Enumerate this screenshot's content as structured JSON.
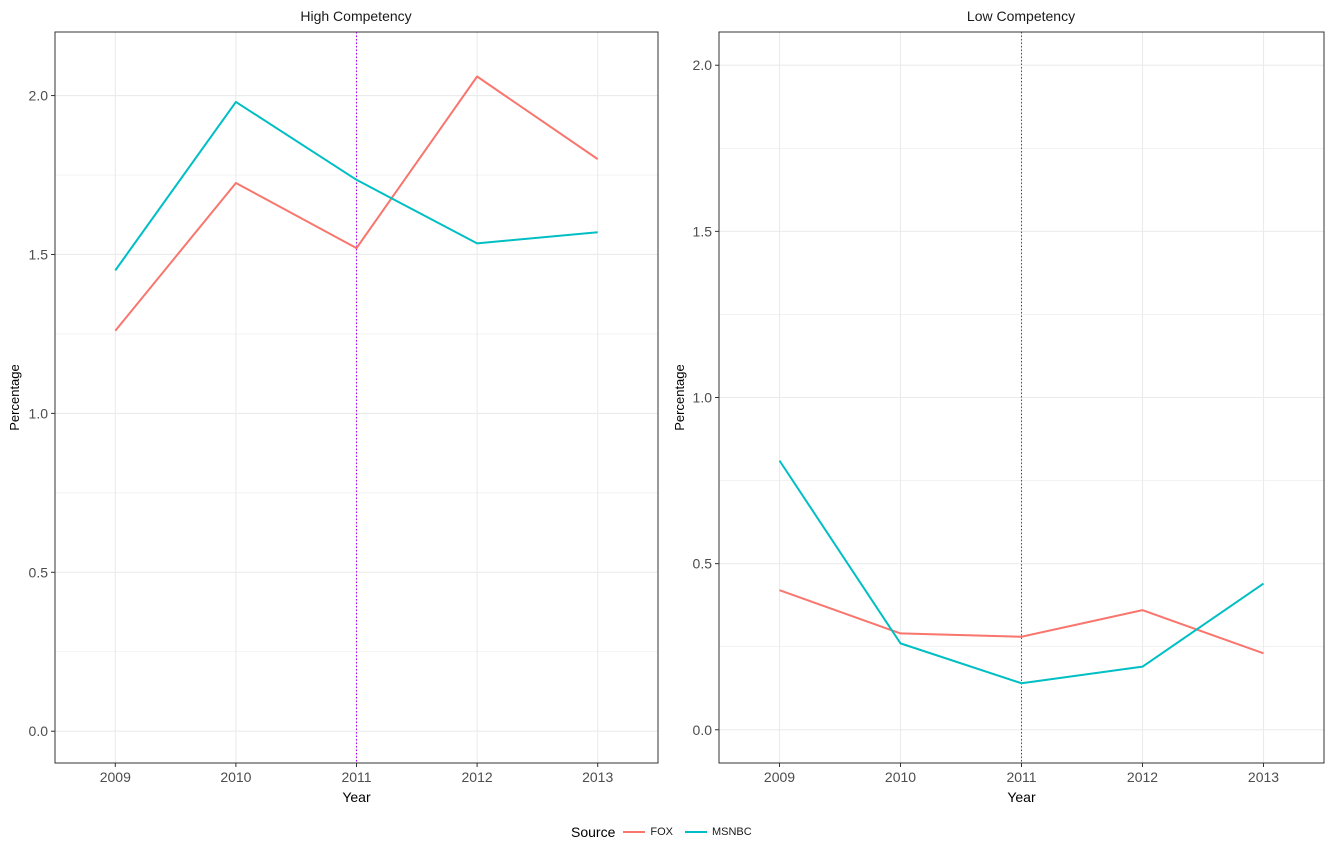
{
  "chart_data": [
    {
      "type": "line",
      "title": "High Competency",
      "xlabel": "Year",
      "ylabel": "Percentage",
      "x": [
        2009,
        2010,
        2011,
        2012,
        2013
      ],
      "xlim": [
        2008.5,
        2013.5
      ],
      "ylim": [
        -0.1,
        2.2
      ],
      "yticks": [
        0.0,
        0.5,
        1.0,
        1.5,
        2.0
      ],
      "ytick_labels": [
        "0.0",
        "0.5",
        "1.0",
        "1.5",
        "2.0"
      ],
      "xtick_labels": [
        "2009",
        "2010",
        "2011",
        "2012",
        "2013"
      ],
      "vline": 2011,
      "grid": true,
      "series": [
        {
          "name": "FOX",
          "values": [
            1.26,
            1.725,
            1.52,
            2.06,
            1.8
          ]
        },
        {
          "name": "MSNBC",
          "values": [
            1.45,
            1.98,
            1.735,
            1.535,
            1.57
          ]
        }
      ]
    },
    {
      "type": "line",
      "title": "Low Competency",
      "xlabel": "Year",
      "ylabel": "Percentage",
      "x": [
        2009,
        2010,
        2011,
        2012,
        2013
      ],
      "xlim": [
        2008.5,
        2013.5
      ],
      "ylim": [
        -0.1,
        2.1
      ],
      "yticks": [
        0.0,
        0.5,
        1.0,
        1.5,
        2.0
      ],
      "ytick_labels": [
        "0.0",
        "0.5",
        "1.0",
        "1.5",
        "2.0"
      ],
      "xtick_labels": [
        "2009",
        "2010",
        "2011",
        "2012",
        "2013"
      ],
      "vline": 2011,
      "grid": true,
      "series": [
        {
          "name": "FOX",
          "values": [
            0.42,
            0.29,
            0.28,
            0.36,
            0.23
          ]
        },
        {
          "name": "MSNBC",
          "values": [
            0.81,
            0.26,
            0.14,
            0.19,
            0.44
          ]
        }
      ]
    }
  ],
  "legend": {
    "title": "Source",
    "placement": "bottom-center",
    "items": [
      {
        "label": "FOX",
        "color": "#F8766D"
      },
      {
        "label": "MSNBC",
        "color": "#00BFC4"
      }
    ]
  },
  "colors": {
    "FOX": "#F8766D",
    "MSNBC": "#00BFC4",
    "vline": "#B000FF",
    "grid": "#EBEBEB",
    "border": "#333333"
  }
}
